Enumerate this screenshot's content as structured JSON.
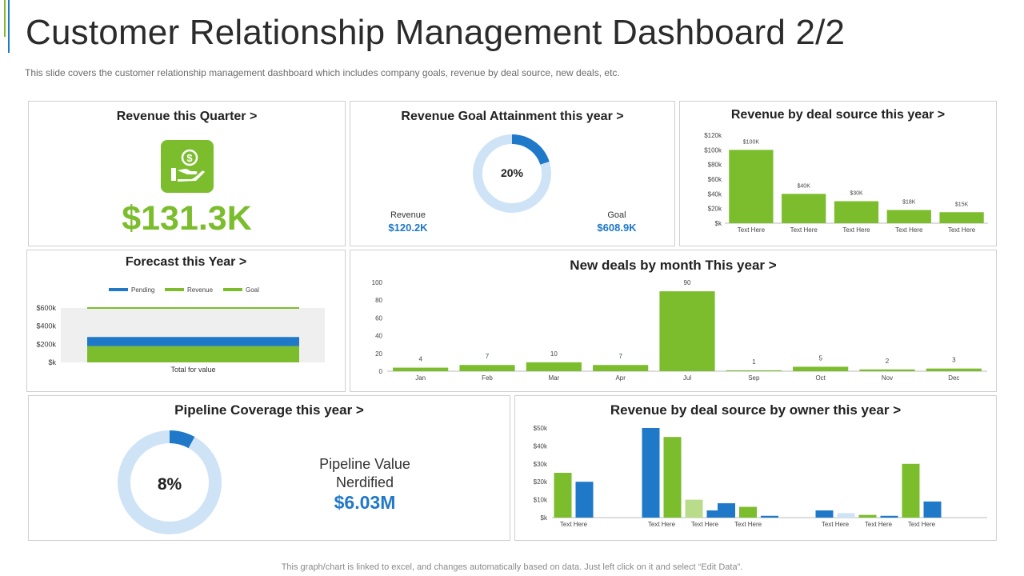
{
  "page": {
    "title": "Customer Relationship Management Dashboard 2/2",
    "subtitle": "This slide covers the customer relationship management dashboard which includes company goals, revenue  by deal source, new deals, etc.",
    "footnote": "This graph/chart is linked to excel, and changes automatically based on data. Just left click on it and select “Edit Data”."
  },
  "colors": {
    "green": "#7cbd2e",
    "blue": "#1f78c8",
    "light_blue": "#cfe3f7",
    "light_green": "#b9dc8a"
  },
  "revenue_quarter": {
    "title": "Revenue this Quarter >",
    "value": "$131.3K",
    "icon": "money-hand-icon"
  },
  "goal_attainment": {
    "title": "Revenue Goal Attainment this year >",
    "percent_label": "20%",
    "percent": 20,
    "revenue_label": "Revenue",
    "revenue_value": "$120.2K",
    "goal_label": "Goal",
    "goal_value": "$608.9K"
  },
  "deal_source": {
    "title": "Revenue by deal source this year >"
  },
  "forecast": {
    "title": "Forecast this Year >"
  },
  "new_deals": {
    "title": "New deals by month This year >"
  },
  "pipeline": {
    "title": "Pipeline Coverage this year >",
    "percent_label": "8%",
    "percent": 8,
    "value_label_1": "Pipeline Value",
    "value_label_2": "Nerdified",
    "value": "$6.03M"
  },
  "owner": {
    "title": "Revenue by deal source by owner this year >"
  },
  "chart_data": [
    {
      "id": "deal_source",
      "type": "bar",
      "categories": [
        "Text Here",
        "Text Here",
        "Text Here",
        "Text Here",
        "Text Here"
      ],
      "values": [
        100,
        40,
        30,
        18,
        15
      ],
      "data_labels": [
        "$100K",
        "$40K",
        "$30K",
        "$18K",
        "$15K"
      ],
      "yticks": [
        "$k",
        "$20k",
        "$40k",
        "$60k",
        "$80k",
        "$100k",
        "$120k"
      ],
      "ylim": [
        0,
        120
      ],
      "unit": "$K"
    },
    {
      "id": "forecast",
      "type": "bar",
      "orientation": "horizontal",
      "categories": [
        "Total for value"
      ],
      "series": [
        {
          "name": "Pending",
          "values": [
            280
          ]
        },
        {
          "name": "Revenue",
          "values": [
            180
          ]
        },
        {
          "name": "Goal",
          "values": [
            600
          ]
        }
      ],
      "yticks": [
        "$k",
        "$200k",
        "$400k",
        "$600k"
      ],
      "ylim": [
        0,
        600
      ],
      "legend": "top"
    },
    {
      "id": "new_deals",
      "type": "bar",
      "categories": [
        "Jan",
        "Feb",
        "Mar",
        "Apr",
        "Jul",
        "Sep",
        "Oct",
        "Nov",
        "Dec"
      ],
      "values": [
        4,
        7,
        10,
        7,
        90,
        1,
        5,
        2,
        3
      ],
      "yticks": [
        "0",
        "20",
        "40",
        "60",
        "80",
        "100"
      ],
      "ylim": [
        0,
        100
      ]
    },
    {
      "id": "owner",
      "type": "bar",
      "categories": [
        "Text Here",
        "Text Here",
        "Text Here",
        "Text Here",
        "Text Here",
        "Text Here",
        "Text Here"
      ],
      "bars": [
        {
          "group": 0,
          "value": 25,
          "color": "green"
        },
        {
          "group": 0,
          "value": 20,
          "color": "blue"
        },
        {
          "group": 1,
          "value": 50,
          "color": "blue"
        },
        {
          "group": 1,
          "value": 45,
          "color": "green"
        },
        {
          "group": 2,
          "value": 10,
          "color": "light_green"
        },
        {
          "group": 2,
          "value": 4,
          "color": "blue"
        },
        {
          "group": 3,
          "value": 8,
          "color": "blue"
        },
        {
          "group": 3,
          "value": 6,
          "color": "green"
        },
        {
          "group": 3,
          "value": 1,
          "color": "blue"
        },
        {
          "group": 4,
          "value": 4,
          "color": "blue"
        },
        {
          "group": 4,
          "value": 2.5,
          "color": "light_blue"
        },
        {
          "group": 5,
          "value": 1.5,
          "color": "green"
        },
        {
          "group": 5,
          "value": 1,
          "color": "blue"
        },
        {
          "group": 6,
          "value": 30,
          "color": "green"
        },
        {
          "group": 6,
          "value": 9,
          "color": "blue"
        }
      ],
      "yticks": [
        "$k",
        "$10k",
        "$20k",
        "$30k",
        "$40k",
        "$50k"
      ],
      "ylim": [
        0,
        50
      ]
    }
  ]
}
